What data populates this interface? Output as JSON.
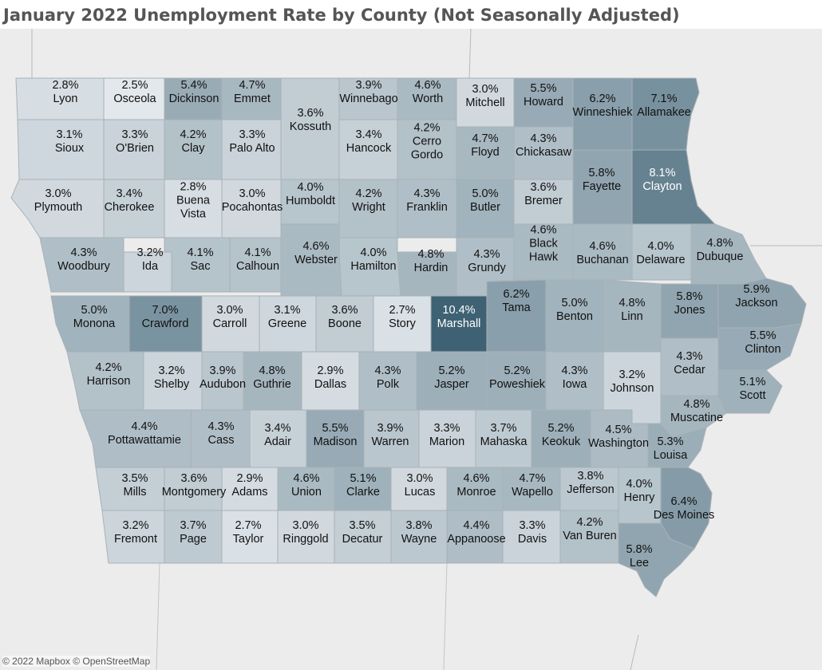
{
  "title": "January 2022 Unemployment Rate by County (Not Seasonally Adjusted)",
  "attribution": "© 2022 Mapbox © OpenStreetMap",
  "colors": {
    "low": "#e3e8ec",
    "high": "#3e6274",
    "border": "#a9b1b6",
    "background": "#ececec"
  },
  "scale": {
    "min_rate": 2.5,
    "max_rate": 10.4
  },
  "counties": [
    {
      "name": "Lyon",
      "rate": 2.8
    },
    {
      "name": "Osceola",
      "rate": 2.5
    },
    {
      "name": "Dickinson",
      "rate": 5.4
    },
    {
      "name": "Emmet",
      "rate": 4.7
    },
    {
      "name": "Kossuth",
      "rate": 3.6
    },
    {
      "name": "Winnebago",
      "rate": 3.9
    },
    {
      "name": "Worth",
      "rate": 4.6
    },
    {
      "name": "Mitchell",
      "rate": 3.0
    },
    {
      "name": "Howard",
      "rate": 5.5
    },
    {
      "name": "Winneshiek",
      "rate": 6.2
    },
    {
      "name": "Allamakee",
      "rate": 7.1
    },
    {
      "name": "Sioux",
      "rate": 3.1
    },
    {
      "name": "O'Brien",
      "rate": 3.3
    },
    {
      "name": "Clay",
      "rate": 4.2
    },
    {
      "name": "Palo Alto",
      "rate": 3.3
    },
    {
      "name": "Hancock",
      "rate": 3.4
    },
    {
      "name": "Cerro Gordo",
      "rate": 4.2
    },
    {
      "name": "Floyd",
      "rate": 4.7
    },
    {
      "name": "Chickasaw",
      "rate": 4.3
    },
    {
      "name": "Fayette",
      "rate": 5.8
    },
    {
      "name": "Clayton",
      "rate": 8.1
    },
    {
      "name": "Plymouth",
      "rate": 3.0
    },
    {
      "name": "Cherokee",
      "rate": 3.4
    },
    {
      "name": "Buena Vista",
      "rate": 2.8
    },
    {
      "name": "Pocahontas",
      "rate": 3.0
    },
    {
      "name": "Humboldt",
      "rate": 4.0
    },
    {
      "name": "Wright",
      "rate": 4.2
    },
    {
      "name": "Franklin",
      "rate": 4.3
    },
    {
      "name": "Butler",
      "rate": 5.0
    },
    {
      "name": "Bremer",
      "rate": 3.6
    },
    {
      "name": "Woodbury",
      "rate": 4.3
    },
    {
      "name": "Ida",
      "rate": 3.2
    },
    {
      "name": "Sac",
      "rate": 4.1
    },
    {
      "name": "Calhoun",
      "rate": 4.1
    },
    {
      "name": "Webster",
      "rate": 4.6
    },
    {
      "name": "Hamilton",
      "rate": 4.0
    },
    {
      "name": "Hardin",
      "rate": 4.8
    },
    {
      "name": "Grundy",
      "rate": 4.3
    },
    {
      "name": "Black Hawk",
      "rate": 4.6
    },
    {
      "name": "Buchanan",
      "rate": 4.6
    },
    {
      "name": "Delaware",
      "rate": 4.0
    },
    {
      "name": "Dubuque",
      "rate": 4.8
    },
    {
      "name": "Monona",
      "rate": 5.0
    },
    {
      "name": "Crawford",
      "rate": 7.0
    },
    {
      "name": "Carroll",
      "rate": 3.0
    },
    {
      "name": "Greene",
      "rate": 3.1
    },
    {
      "name": "Boone",
      "rate": 3.6
    },
    {
      "name": "Story",
      "rate": 2.7
    },
    {
      "name": "Marshall",
      "rate": 10.4
    },
    {
      "name": "Tama",
      "rate": 6.2
    },
    {
      "name": "Benton",
      "rate": 5.0
    },
    {
      "name": "Linn",
      "rate": 4.8
    },
    {
      "name": "Jones",
      "rate": 5.8
    },
    {
      "name": "Jackson",
      "rate": 5.9
    },
    {
      "name": "Harrison",
      "rate": 4.2
    },
    {
      "name": "Shelby",
      "rate": 3.2
    },
    {
      "name": "Audubon",
      "rate": 3.9
    },
    {
      "name": "Guthrie",
      "rate": 4.8
    },
    {
      "name": "Dallas",
      "rate": 2.9
    },
    {
      "name": "Polk",
      "rate": 4.3
    },
    {
      "name": "Jasper",
      "rate": 5.2
    },
    {
      "name": "Poweshiek",
      "rate": 5.2
    },
    {
      "name": "Iowa",
      "rate": 4.3
    },
    {
      "name": "Johnson",
      "rate": 3.2
    },
    {
      "name": "Cedar",
      "rate": 4.3
    },
    {
      "name": "Clinton",
      "rate": 5.5
    },
    {
      "name": "Scott",
      "rate": 5.1
    },
    {
      "name": "Muscatine",
      "rate": 4.8
    },
    {
      "name": "Pottawattamie",
      "rate": 4.4
    },
    {
      "name": "Cass",
      "rate": 4.3
    },
    {
      "name": "Adair",
      "rate": 3.4
    },
    {
      "name": "Madison",
      "rate": 5.5
    },
    {
      "name": "Warren",
      "rate": 3.9
    },
    {
      "name": "Marion",
      "rate": 3.3
    },
    {
      "name": "Mahaska",
      "rate": 3.7
    },
    {
      "name": "Keokuk",
      "rate": 5.2
    },
    {
      "name": "Washington",
      "rate": 4.5
    },
    {
      "name": "Louisa",
      "rate": 5.3
    },
    {
      "name": "Mills",
      "rate": 3.5
    },
    {
      "name": "Montgomery",
      "rate": 3.6
    },
    {
      "name": "Adams",
      "rate": 2.9
    },
    {
      "name": "Union",
      "rate": 4.6
    },
    {
      "name": "Clarke",
      "rate": 5.1
    },
    {
      "name": "Lucas",
      "rate": 3.0
    },
    {
      "name": "Monroe",
      "rate": 4.6
    },
    {
      "name": "Wapello",
      "rate": 4.7
    },
    {
      "name": "Jefferson",
      "rate": 3.8
    },
    {
      "name": "Henry",
      "rate": 4.0
    },
    {
      "name": "Des Moines",
      "rate": 6.4
    },
    {
      "name": "Fremont",
      "rate": 3.2
    },
    {
      "name": "Page",
      "rate": 3.7
    },
    {
      "name": "Taylor",
      "rate": 2.7
    },
    {
      "name": "Ringgold",
      "rate": 3.0
    },
    {
      "name": "Decatur",
      "rate": 3.5
    },
    {
      "name": "Wayne",
      "rate": 3.8
    },
    {
      "name": "Appanoose",
      "rate": 4.4
    },
    {
      "name": "Davis",
      "rate": 3.3
    },
    {
      "name": "Van Buren",
      "rate": 4.2
    },
    {
      "name": "Lee",
      "rate": 5.8
    }
  ]
}
